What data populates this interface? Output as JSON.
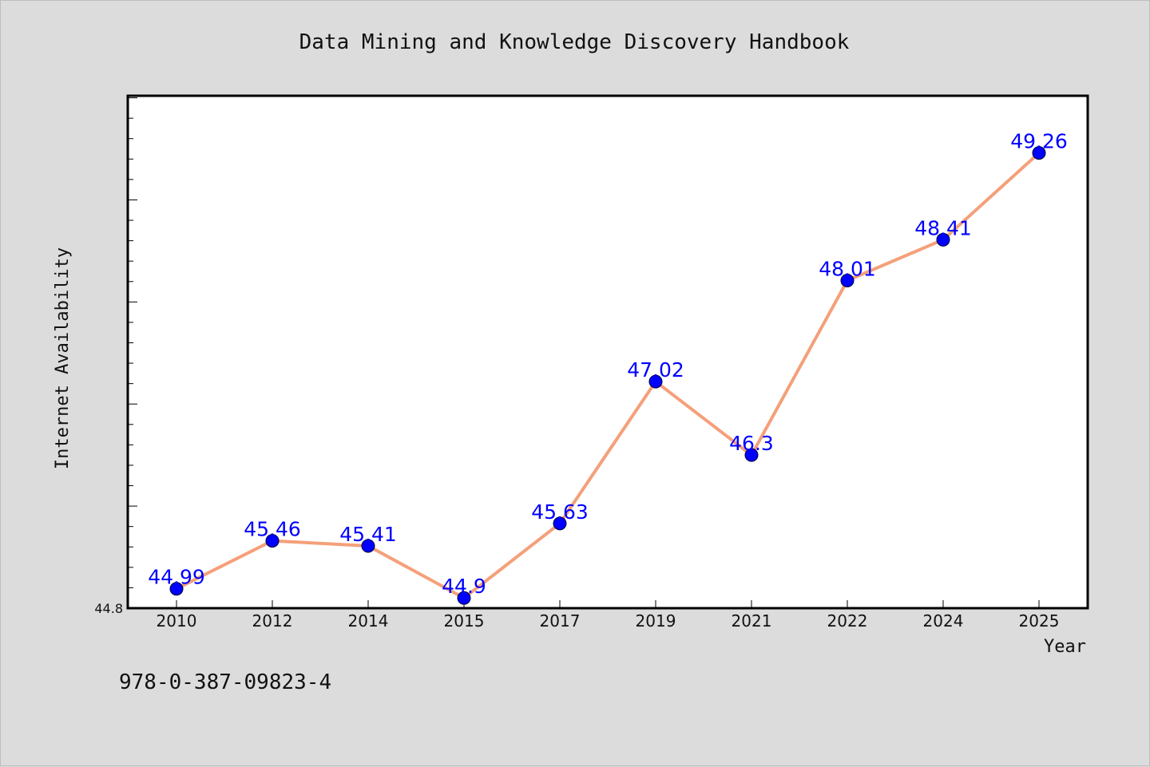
{
  "chart_data": {
    "type": "line",
    "title": "Data Mining and Knowledge Discovery Handbook",
    "xlabel": "Year",
    "ylabel": "Internet Availability",
    "categories": [
      "2010",
      "2012",
      "2014",
      "2015",
      "2017",
      "2019",
      "2021",
      "2022",
      "2024",
      "2025"
    ],
    "series": [
      {
        "values": [
          44.99,
          45.46,
          45.41,
          44.9,
          45.63,
          47.02,
          46.3,
          48.01,
          48.41,
          49.26
        ],
        "labels": [
          "44.99",
          "45.46",
          "45.41",
          "44.9",
          "45.63",
          "47.02",
          "46.3",
          "48.01",
          "48.41",
          "49.26"
        ],
        "line_color": "#f4a07a",
        "marker_color": "#0000ff"
      }
    ],
    "ylim": [
      44.8,
      49.82
    ],
    "yticks_labeled": [
      "44.8"
    ],
    "grid": false,
    "legend": "none"
  },
  "footer": {
    "isbn": "978-0-387-09823-4"
  },
  "colors": {
    "background": "#dcdcdc",
    "plot_background": "#ffffff",
    "line": "#f4a07a",
    "marker": "#0000ff",
    "data_label": "#0000ff"
  }
}
